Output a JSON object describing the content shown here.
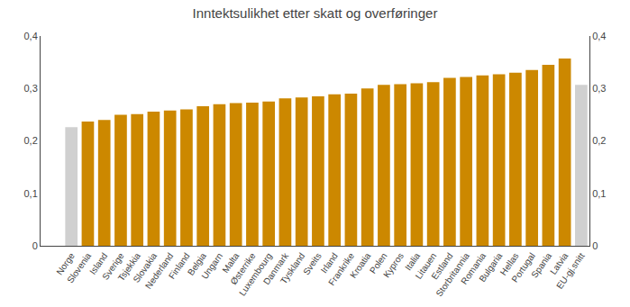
{
  "chart_data": {
    "type": "bar",
    "title": "Inntektsulikhet etter skatt og overføringer",
    "categories": [
      "Norge",
      "Slovenia",
      "Island",
      "Sverige",
      "Tsjekkia",
      "Slovakia",
      "Nederland",
      "Finland",
      "Belgia",
      "Ungarn",
      "Malta",
      "Østerrike",
      "Luxembourg",
      "Danmark",
      "Tyskland",
      "Sveits",
      "Irland",
      "Frankrike",
      "Kroatia",
      "Polen",
      "Kypros",
      "Italia",
      "Litauen",
      "Estland",
      "Storbritannia",
      "Romania",
      "Bulgaria",
      "Hellas",
      "Portugal",
      "Spania",
      "Latvia",
      "EU-gj.snitt"
    ],
    "values": [
      0.226,
      0.237,
      0.24,
      0.25,
      0.251,
      0.256,
      0.258,
      0.26,
      0.266,
      0.27,
      0.272,
      0.273,
      0.275,
      0.281,
      0.283,
      0.285,
      0.289,
      0.29,
      0.3,
      0.307,
      0.308,
      0.31,
      0.312,
      0.32,
      0.322,
      0.325,
      0.327,
      0.33,
      0.335,
      0.345,
      0.357,
      0.307
    ],
    "colors": [
      "#d0d0d0",
      "#CC8800",
      "#CC8800",
      "#CC8800",
      "#CC8800",
      "#CC8800",
      "#CC8800",
      "#CC8800",
      "#CC8800",
      "#CC8800",
      "#CC8800",
      "#CC8800",
      "#CC8800",
      "#CC8800",
      "#CC8800",
      "#CC8800",
      "#CC8800",
      "#CC8800",
      "#CC8800",
      "#CC8800",
      "#CC8800",
      "#CC8800",
      "#CC8800",
      "#CC8800",
      "#CC8800",
      "#CC8800",
      "#CC8800",
      "#CC8800",
      "#CC8800",
      "#CC8800",
      "#CC8800",
      "#d0d0d0"
    ],
    "ylim": [
      0,
      0.4
    ],
    "yticks": [
      0,
      {
        "value": 0.1,
        "label": "0,1"
      },
      {
        "value": 0.2,
        "label": "0,2"
      },
      {
        "value": 0.3,
        "label": "0,3"
      },
      {
        "value": 0.4,
        "label": "0,4"
      }
    ],
    "y2lim": [
      0,
      0.4
    ],
    "y2ticks": [
      0,
      {
        "value": 0.1,
        "label": "0,1"
      },
      {
        "value": 0.2,
        "label": "0,2"
      },
      {
        "value": 0.3,
        "label": "0,3"
      },
      {
        "value": 0.4,
        "label": "0,4"
      }
    ],
    "grid": false
  }
}
